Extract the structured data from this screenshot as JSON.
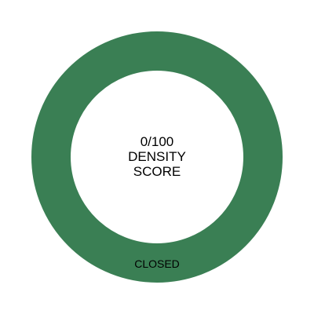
{
  "gauge": {
    "score_text": "0/100",
    "line1": "DENSITY",
    "line2": "SCORE",
    "status": "CLOSED",
    "value": 0,
    "max": 100,
    "ring_color": "#3a7f54",
    "center_color": "#ffffff"
  }
}
